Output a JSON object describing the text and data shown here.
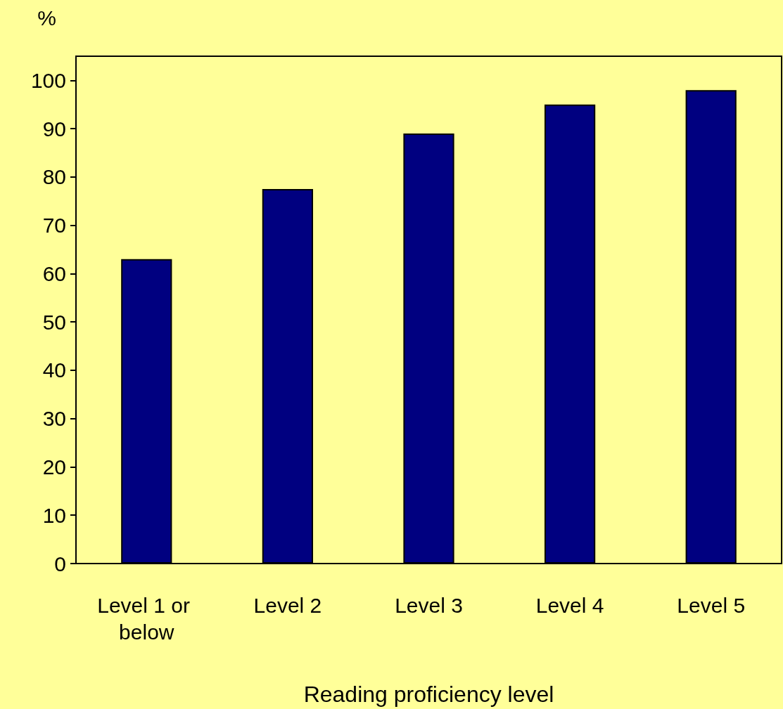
{
  "chart_data": {
    "type": "bar",
    "xlabel": "Reading proficiency level",
    "ylabel": "%",
    "categories": [
      "Level 1 or below",
      "Level 2",
      "Level 3",
      "Level 4",
      "Level 5"
    ],
    "values": [
      63,
      77.5,
      89,
      95,
      98
    ],
    "color": "#000080",
    "ylim": [
      0,
      105
    ],
    "yticks": [
      0,
      10,
      20,
      30,
      40,
      50,
      60,
      70,
      80,
      90,
      100
    ],
    "grid": false
  }
}
